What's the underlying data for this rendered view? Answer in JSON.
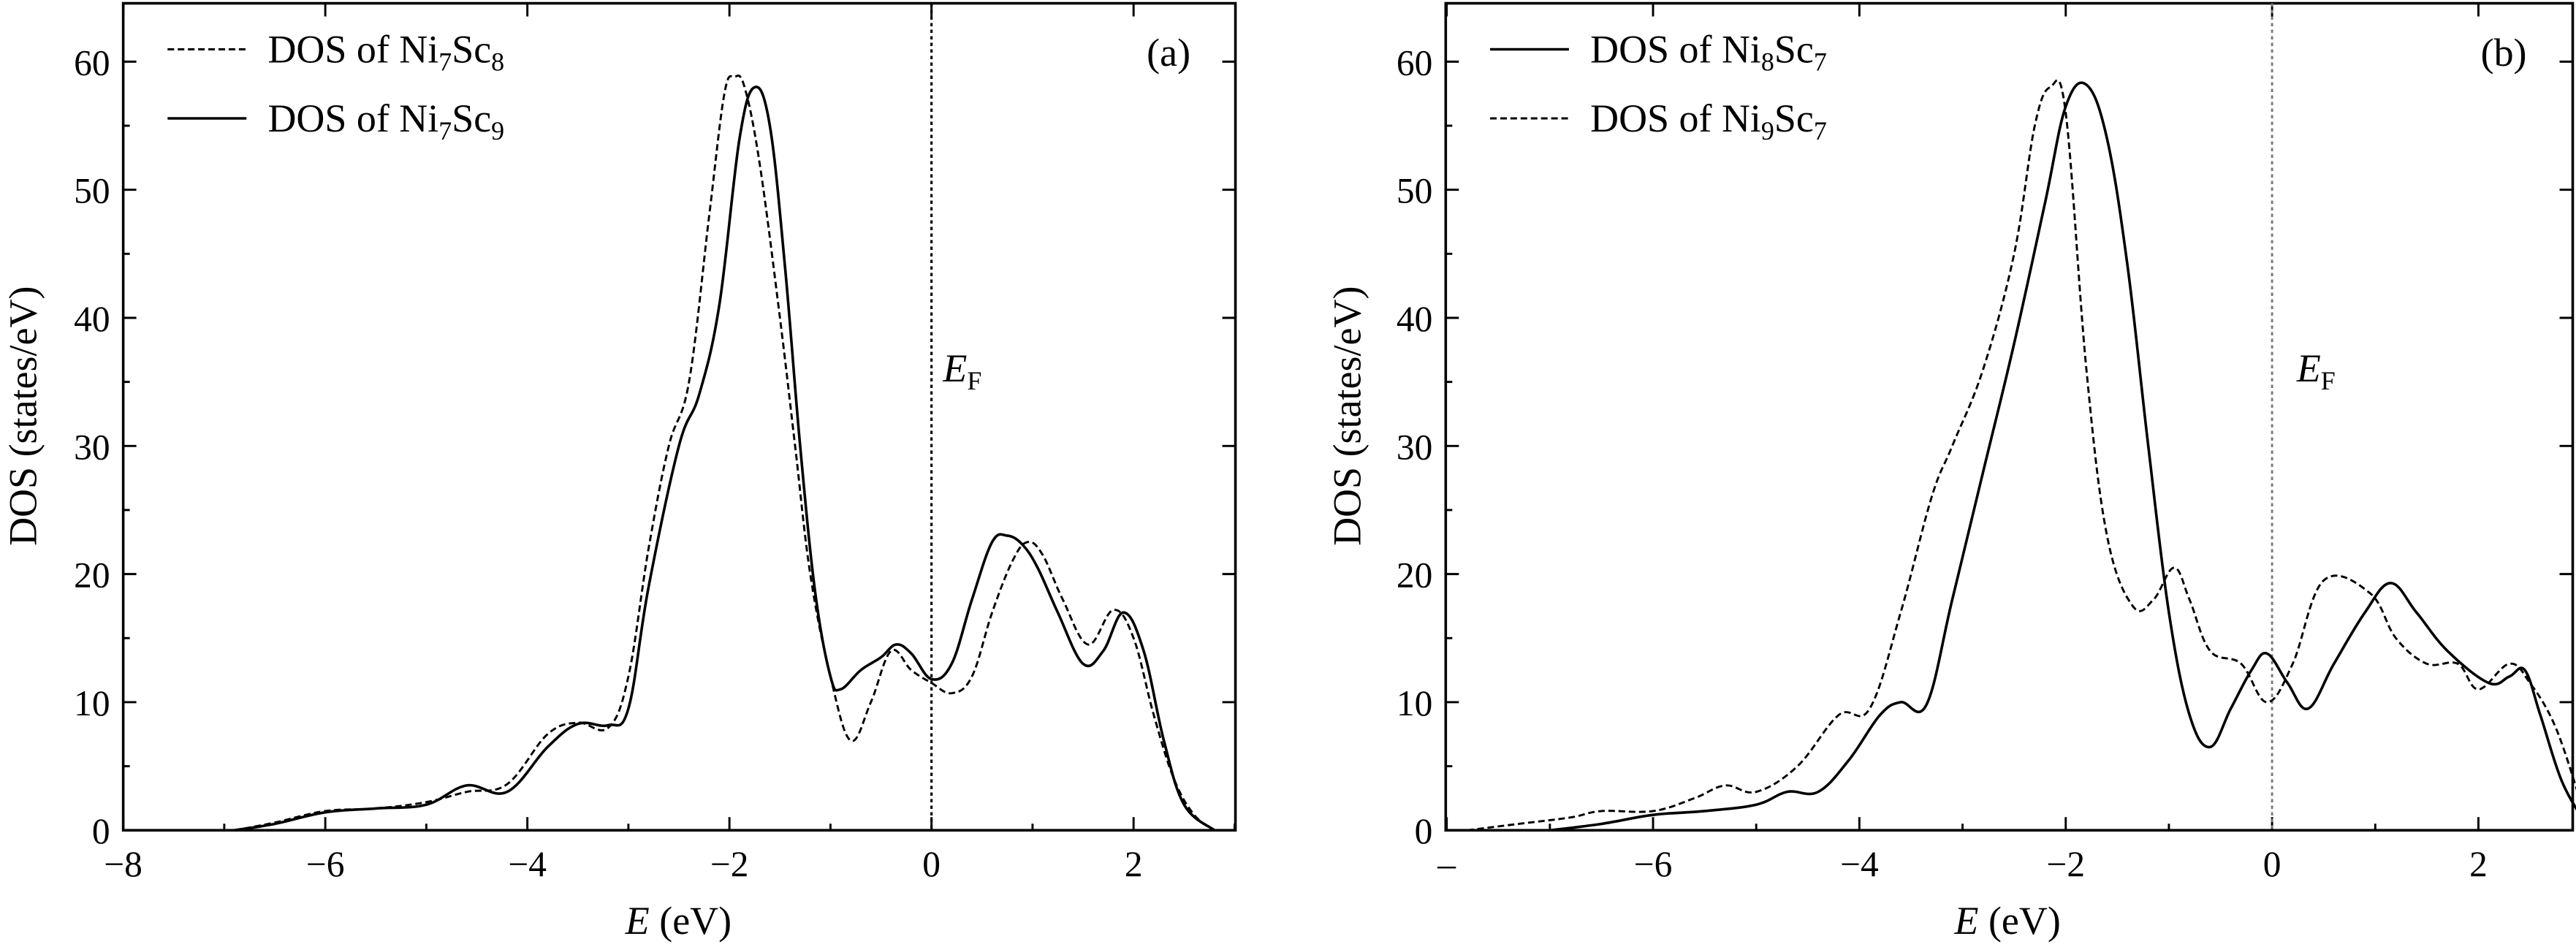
{
  "chart_data": [
    {
      "type": "line",
      "panel_tag": "(a)",
      "xlabel": {
        "italic": "E",
        "rest": " (eV)"
      },
      "ylabel": "DOS (states/eV)",
      "xlim": [
        -8,
        3
      ],
      "ylim": [
        0,
        65
      ],
      "x_ticks": [
        -8,
        -6,
        -4,
        -2,
        0,
        2
      ],
      "x_tick_labels": [
        "−8",
        "−6",
        "−4",
        "−2",
        "0",
        "2"
      ],
      "y_ticks": [
        0,
        10,
        20,
        30,
        40,
        50,
        60
      ],
      "y_tick_labels": [
        "0",
        "10",
        "20",
        "30",
        "40",
        "50",
        "60"
      ],
      "fermi": {
        "x": 0,
        "label_main": "E",
        "label_sub": "F"
      },
      "grid": false,
      "legend_position": "top-left",
      "series": [
        {
          "name": "DOS of Ni7Sc8",
          "name_parts": {
            "base": "DOS of Ni",
            "sub1": "7",
            "mid": "Sc",
            "sub2": "8"
          },
          "style": "dashed",
          "x": [
            -6.9,
            -6.5,
            -6.0,
            -5.5,
            -5.0,
            -4.6,
            -4.2,
            -3.8,
            -3.5,
            -3.2,
            -3.0,
            -2.8,
            -2.6,
            -2.4,
            -2.2,
            -2.05,
            -1.95,
            -1.85,
            -1.7,
            -1.5,
            -1.35,
            -1.2,
            -1.0,
            -0.8,
            -0.6,
            -0.4,
            -0.2,
            0.0,
            0.2,
            0.4,
            0.6,
            0.8,
            0.95,
            1.1,
            1.3,
            1.55,
            1.8,
            2.0,
            2.2,
            2.4,
            2.6,
            2.8
          ],
          "y": [
            0.0,
            0.6,
            1.5,
            1.7,
            2.2,
            3.0,
            3.6,
            7.5,
            8.4,
            8.0,
            12.0,
            22.0,
            30.0,
            35.0,
            48.0,
            57.5,
            58.8,
            58.0,
            52.0,
            40.0,
            30.0,
            20.0,
            12.0,
            7.0,
            10.0,
            14.0,
            12.5,
            11.5,
            10.7,
            12.0,
            17.0,
            21.0,
            22.5,
            21.5,
            18.0,
            14.5,
            17.2,
            15.0,
            9.0,
            4.0,
            1.2,
            0.0
          ]
        },
        {
          "name": "DOS of Ni7Sc9",
          "name_parts": {
            "base": "DOS of Ni",
            "sub1": "7",
            "mid": "Sc",
            "sub2": "9"
          },
          "style": "solid",
          "x": [
            -6.9,
            -6.5,
            -6.0,
            -5.5,
            -5.0,
            -4.6,
            -4.2,
            -3.8,
            -3.5,
            -3.2,
            -3.0,
            -2.8,
            -2.5,
            -2.3,
            -2.1,
            -1.9,
            -1.75,
            -1.6,
            -1.45,
            -1.3,
            -1.15,
            -1.0,
            -0.9,
            -0.7,
            -0.5,
            -0.35,
            -0.2,
            0.0,
            0.2,
            0.4,
            0.6,
            0.75,
            0.9,
            1.05,
            1.25,
            1.5,
            1.7,
            1.9,
            2.1,
            2.3,
            2.5,
            2.8
          ],
          "y": [
            0.0,
            0.5,
            1.4,
            1.7,
            2.0,
            3.5,
            3.0,
            6.5,
            8.3,
            8.2,
            9.5,
            19.0,
            30.0,
            34.0,
            41.0,
            54.0,
            58.0,
            55.0,
            44.0,
            30.0,
            18.5,
            12.0,
            11.0,
            12.5,
            13.5,
            14.5,
            13.8,
            11.8,
            13.0,
            18.0,
            22.5,
            23.0,
            22.3,
            20.5,
            17.0,
            13.0,
            14.0,
            17.0,
            14.0,
            7.0,
            2.0,
            0.0
          ]
        }
      ]
    },
    {
      "type": "line",
      "panel_tag": "(b)",
      "xlabel": {
        "italic": "E",
        "rest": " (eV)"
      },
      "ylabel": "DOS (states/eV)",
      "xlim": [
        -8,
        3
      ],
      "ylim": [
        0,
        65
      ],
      "x_ticks": [
        -8,
        -6,
        -4,
        -2,
        0,
        2
      ],
      "x_tick_labels": [
        "–",
        "−6",
        "−4",
        "−2",
        "0",
        "2"
      ],
      "y_ticks": [
        0,
        10,
        20,
        30,
        40,
        50,
        60
      ],
      "y_tick_labels": [
        "0",
        "10",
        "20",
        "30",
        "40",
        "50",
        "60"
      ],
      "fermi": {
        "x": 0,
        "label_main": "E",
        "label_sub": "F"
      },
      "grid": false,
      "legend_position": "top-left",
      "series": [
        {
          "name": "DOS of Ni8Sc7",
          "name_parts": {
            "base": "DOS of Ni",
            "sub1": "8",
            "mid": "Sc",
            "sub2": "7"
          },
          "style": "solid",
          "x": [
            -7.0,
            -6.5,
            -6.0,
            -5.5,
            -5.0,
            -4.7,
            -4.4,
            -4.1,
            -3.8,
            -3.6,
            -3.35,
            -3.1,
            -2.8,
            -2.5,
            -2.2,
            -2.0,
            -1.8,
            -1.6,
            -1.4,
            -1.2,
            -1.0,
            -0.8,
            -0.6,
            -0.4,
            -0.2,
            -0.05,
            0.15,
            0.35,
            0.6,
            0.9,
            1.15,
            1.4,
            1.7,
            2.1,
            2.3,
            2.45,
            2.6,
            2.8,
            3.0
          ],
          "y": [
            0.0,
            0.5,
            1.2,
            1.5,
            2.0,
            3.0,
            3.0,
            5.5,
            9.0,
            10.0,
            9.8,
            18.0,
            28.0,
            38.0,
            49.0,
            56.5,
            58.2,
            54.0,
            44.0,
            30.0,
            17.0,
            9.0,
            6.5,
            9.5,
            12.5,
            13.8,
            11.5,
            9.5,
            13.0,
            17.0,
            19.3,
            17.0,
            14.0,
            11.5,
            12.0,
            12.5,
            9.0,
            4.0,
            1.0
          ]
        },
        {
          "name": "DOS of Ni9Sc7",
          "name_parts": {
            "base": "DOS of Ni",
            "sub1": "9",
            "mid": "Sc",
            "sub2": "7"
          },
          "style": "dashed",
          "x": [
            -7.8,
            -7.3,
            -6.8,
            -6.5,
            -6.0,
            -5.6,
            -5.3,
            -5.0,
            -4.6,
            -4.2,
            -3.9,
            -3.6,
            -3.3,
            -3.1,
            -2.8,
            -2.5,
            -2.3,
            -2.15,
            -2.0,
            -1.8,
            -1.6,
            -1.35,
            -1.15,
            -0.95,
            -0.8,
            -0.6,
            -0.3,
            -0.05,
            0.2,
            0.5,
            0.95,
            1.2,
            1.5,
            1.8,
            2.0,
            2.3,
            2.5,
            2.75,
            3.0
          ],
          "y": [
            0.0,
            0.5,
            1.0,
            1.5,
            1.5,
            2.5,
            3.5,
            3.0,
            5.0,
            9.0,
            9.5,
            17.0,
            26.0,
            30.0,
            36.0,
            45.0,
            55.0,
            58.0,
            56.0,
            36.0,
            23.0,
            17.5,
            18.0,
            20.5,
            18.0,
            14.0,
            13.0,
            10.0,
            13.0,
            19.5,
            18.5,
            15.0,
            13.0,
            13.0,
            11.0,
            13.0,
            11.5,
            8.0,
            2.0
          ]
        }
      ]
    }
  ]
}
